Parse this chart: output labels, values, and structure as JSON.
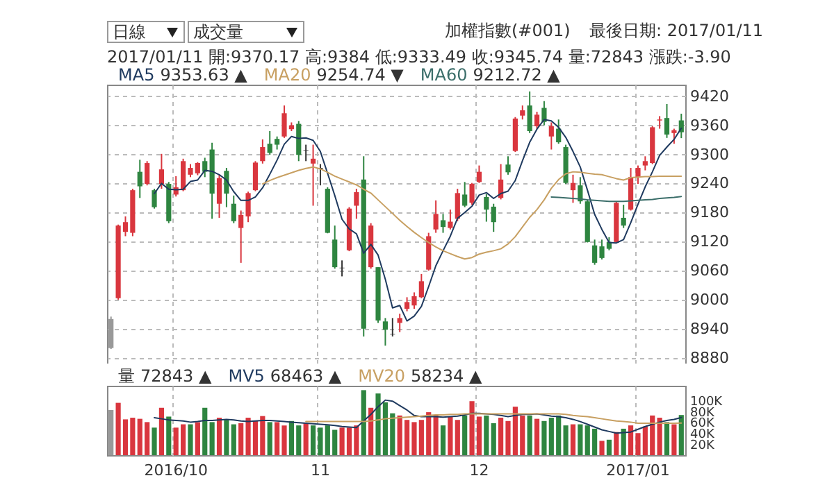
{
  "chart_data": [
    {
      "type": "candlestick",
      "title": "加權指數(#001)",
      "subtitle": "最後日期: 2017/01/11",
      "annotations": [
        "日線",
        "成交量",
        "2017/01/11 開:9370.17 高:9384 低:9333.49 收:9345.74 量:72843 漲跌:-3.90",
        "9353.63 ▲",
        "9254.74 ▼",
        "9212.72 ▲"
      ],
      "categories": [
        null,
        null,
        null,
        null,
        null,
        null,
        null,
        null,
        null,
        "2016/10",
        null,
        null,
        null,
        null,
        null,
        null,
        null,
        null,
        null,
        null,
        null,
        null,
        null,
        null,
        null,
        null,
        null,
        null,
        null,
        "11",
        null,
        null,
        null,
        null,
        null,
        null,
        null,
        null,
        null,
        null,
        null,
        null,
        null,
        null,
        null,
        null,
        null,
        null,
        null,
        null,
        null,
        "12",
        null,
        null,
        null,
        null,
        null,
        null,
        null,
        null,
        null,
        null,
        null,
        null,
        null,
        null,
        null,
        null,
        null,
        null,
        null,
        null,
        null,
        "2017/01",
        null,
        null,
        null,
        null,
        null,
        null
      ],
      "ohlc": [
        [
          8900,
          8965,
          8898,
          8960
        ],
        [
          9003,
          9155,
          9000,
          9153
        ],
        [
          9140,
          9172,
          9131,
          9160
        ],
        [
          9138,
          9229,
          9131,
          9226
        ],
        [
          9264,
          9289,
          9210,
          9234
        ],
        [
          9239,
          9286,
          9236,
          9282
        ],
        [
          9226,
          9229,
          9188,
          9191
        ],
        [
          9239,
          9301,
          9229,
          9269
        ],
        [
          9239,
          9243,
          9158,
          9162
        ],
        [
          9217,
          9255,
          9213,
          9232
        ],
        [
          9226,
          9291,
          9224,
          9286
        ],
        [
          9258,
          9280,
          9253,
          9272
        ],
        [
          9261,
          9284,
          9257,
          9282
        ],
        [
          9286,
          9293,
          9253,
          9264
        ],
        [
          9310,
          9324,
          9167,
          9219
        ],
        [
          9198,
          9258,
          9169,
          9251
        ],
        [
          9266,
          9272,
          9191,
          9219
        ],
        [
          9198,
          9215,
          9158,
          9162
        ],
        [
          9148,
          9184,
          9076,
          9175
        ],
        [
          9172,
          9223,
          9160,
          9220
        ],
        [
          9226,
          9286,
          9224,
          9283
        ],
        [
          9286,
          9331,
          9281,
          9315
        ],
        [
          9322,
          9348,
          9299,
          9303
        ],
        [
          9332,
          9337,
          9310,
          9320
        ],
        [
          9337,
          9401,
          9334,
          9385
        ],
        [
          9352,
          9366,
          9348,
          9360
        ],
        [
          9363,
          9369,
          9286,
          9299
        ],
        [
          9309,
          9320,
          9286,
          9308
        ],
        [
          9281,
          9320,
          9194,
          9291
        ],
        [
          9272,
          9280,
          9236,
          9270
        ],
        [
          9229,
          9232,
          9137,
          9138
        ],
        [
          9124,
          9153,
          9064,
          9067
        ],
        [
          9066,
          9081,
          9048,
          9065
        ],
        [
          9102,
          9191,
          9100,
          9188
        ],
        [
          9194,
          9229,
          9167,
          9222
        ],
        [
          9248,
          9296,
          8924,
          8940
        ],
        [
          9067,
          9158,
          9064,
          9153
        ],
        [
          9067,
          9067,
          8952,
          8957
        ],
        [
          8955,
          8962,
          8905,
          8938
        ],
        [
          8929,
          8962,
          8924,
          8928
        ],
        [
          8952,
          8971,
          8933,
          8962
        ],
        [
          8981,
          9005,
          8976,
          8995
        ],
        [
          8988,
          9015,
          8981,
          9007
        ],
        [
          9005,
          9053,
          9003,
          9038
        ],
        [
          9062,
          9138,
          9060,
          9131
        ],
        [
          9145,
          9205,
          9138,
          9177
        ],
        [
          9164,
          9177,
          9138,
          9150
        ],
        [
          9148,
          9186,
          9145,
          9161
        ],
        [
          9167,
          9229,
          9162,
          9220
        ],
        [
          9217,
          9243,
          9191,
          9194
        ],
        [
          9200,
          9241,
          9196,
          9239
        ],
        [
          9243,
          9277,
          9241,
          9264
        ],
        [
          9212,
          9218,
          9161,
          9186
        ],
        [
          9192,
          9198,
          9140,
          9160
        ],
        [
          9210,
          9280,
          9207,
          9248
        ],
        [
          9279,
          9296,
          9258,
          9263
        ],
        [
          9307,
          9377,
          9305,
          9374
        ],
        [
          9380,
          9401,
          9372,
          9391
        ],
        [
          9401,
          9430,
          9344,
          9348
        ],
        [
          9358,
          9388,
          9353,
          9382
        ],
        [
          9396,
          9410,
          9360,
          9367
        ],
        [
          9337,
          9366,
          9310,
          9358
        ],
        [
          9353,
          9372,
          9322,
          9325
        ],
        [
          9315,
          9320,
          9239,
          9241
        ],
        [
          9226,
          9258,
          9200,
          9241
        ],
        [
          9236,
          9253,
          9198,
          9203
        ],
        [
          9203,
          9205,
          9118,
          9119
        ],
        [
          9112,
          9124,
          9072,
          9076
        ],
        [
          9110,
          9124,
          9083,
          9086
        ],
        [
          9119,
          9129,
          9102,
          9105
        ],
        [
          9119,
          9202,
          9118,
          9200
        ],
        [
          9169,
          9196,
          9148,
          9153
        ],
        [
          9186,
          9272,
          9184,
          9253
        ],
        [
          9253,
          9277,
          9239,
          9272
        ],
        [
          9277,
          9296,
          9267,
          9286
        ],
        [
          9282,
          9358,
          9280,
          9356
        ],
        [
          9370,
          9379,
          9353,
          9372
        ],
        [
          9375,
          9404,
          9334,
          9341
        ],
        [
          9344,
          9353,
          9322,
          9350
        ],
        [
          9370.17,
          9384,
          9333.49,
          9345.74
        ]
      ],
      "colors": [
        "#999999",
        "#d9363e",
        "#d9363e",
        "#d9363e",
        "#2e8540",
        "#d9363e",
        "#2e8540",
        "#d9363e",
        "#2e8540",
        "#d9363e",
        "#d9363e",
        "#d9363e",
        "#d9363e",
        "#2e8540",
        "#2e8540",
        "#d9363e",
        "#2e8540",
        "#2e8540",
        "#d9363e",
        "#d9363e",
        "#d9363e",
        "#d9363e",
        "#2e8540",
        "#2e8540",
        "#d9363e",
        "#d9363e",
        "#2e8540",
        "#333333",
        "#d9363e",
        "#333333",
        "#2e8540",
        "#2e8540",
        "#333333",
        "#d9363e",
        "#d9363e",
        "#2e8540",
        "#d9363e",
        "#2e8540",
        "#2e8540",
        "#333333",
        "#d9363e",
        "#d9363e",
        "#d9363e",
        "#d9363e",
        "#d9363e",
        "#d9363e",
        "#2e8540",
        "#d9363e",
        "#d9363e",
        "#2e8540",
        "#d9363e",
        "#d9363e",
        "#2e8540",
        "#2e8540",
        "#d9363e",
        "#2e8540",
        "#d9363e",
        "#d9363e",
        "#2e8540",
        "#d9363e",
        "#2e8540",
        "#d9363e",
        "#2e8540",
        "#2e8540",
        "#d9363e",
        "#2e8540",
        "#2e8540",
        "#2e8540",
        "#2e8540",
        "#2e8540",
        "#d9363e",
        "#2e8540",
        "#d9363e",
        "#d9363e",
        "#d9363e",
        "#d9363e",
        "#d9363e",
        "#2e8540",
        "#d9363e",
        "#2e8540"
      ],
      "series": [
        {
          "name": "MA5",
          "type": "line",
          "color": "#1f3a5f",
          "values": [
            null,
            null,
            null,
            null,
            null,
            null,
            9219,
            9240,
            9228,
            9227,
            9228,
            9244,
            9247,
            9267,
            9265,
            9258,
            9247,
            9223,
            9205,
            9205,
            9212,
            9231,
            9259,
            9288,
            9321,
            9337,
            9333,
            9334,
            9329,
            9306,
            9261,
            9215,
            9166,
            9146,
            9136,
            9096,
            9114,
            9092,
            9042,
            8983,
            8988,
            8956,
            8966,
            8986,
            9027,
            9070,
            9101,
            9131,
            9168,
            9180,
            9193,
            9216,
            9221,
            9209,
            9219,
            9224,
            9246,
            9287,
            9325,
            9352,
            9372,
            9369,
            9356,
            9335,
            9306,
            9274,
            9226,
            9176,
            9145,
            9118,
            9117,
            9124,
            9159,
            9197,
            9233,
            9264,
            9298,
            9315,
            9331,
            9354
          ]
        },
        {
          "name": "MA20",
          "type": "line",
          "color": "#c8a062",
          "values": [
            null,
            null,
            null,
            null,
            null,
            null,
            null,
            null,
            null,
            null,
            null,
            null,
            null,
            null,
            null,
            null,
            null,
            null,
            null,
            null,
            null,
            9239,
            9246,
            9252,
            9257,
            9262,
            9267,
            9271,
            9274,
            9270,
            9263,
            9255,
            9249,
            9243,
            9237,
            9228,
            9220,
            9206,
            9192,
            9178,
            9164,
            9151,
            9139,
            9128,
            9118,
            9109,
            9101,
            9095,
            9089,
            9084,
            9087,
            9094,
            9098,
            9101,
            9105,
            9115,
            9130,
            9150,
            9170,
            9186,
            9206,
            9230,
            9248,
            9260,
            9264,
            9263,
            9261,
            9259,
            9258,
            9254,
            9250,
            9247,
            9252,
            9253,
            9254,
            9254,
            9255,
            9255,
            9255,
            9255
          ]
        },
        {
          "name": "MA60",
          "type": "line",
          "color": "#3b6e6a",
          "values": [
            null,
            null,
            null,
            null,
            null,
            null,
            null,
            null,
            null,
            null,
            null,
            null,
            null,
            null,
            null,
            null,
            null,
            null,
            null,
            null,
            null,
            null,
            null,
            null,
            null,
            null,
            null,
            null,
            null,
            null,
            null,
            null,
            null,
            null,
            null,
            null,
            null,
            null,
            null,
            null,
            null,
            null,
            null,
            null,
            null,
            null,
            null,
            null,
            null,
            null,
            null,
            null,
            null,
            null,
            null,
            null,
            null,
            null,
            null,
            null,
            null,
            9212,
            9211,
            9210,
            9209,
            9208,
            9206,
            9205,
            9204,
            9203,
            9203,
            9203,
            9204,
            9205,
            9206,
            9207,
            9209,
            9210,
            9211,
            9213
          ]
        }
      ],
      "ylim": [
        8868,
        9444
      ],
      "yticks": [
        8880,
        8940,
        9000,
        9060,
        9120,
        9180,
        9240,
        9300,
        9360,
        9420
      ],
      "grid": true,
      "tick_labels": "y",
      "legend": "top left"
    },
    {
      "type": "bar",
      "annotations": [
        "72843 ▲",
        "68463 ▲",
        "58234 ▲"
      ],
      "categories": [
        null,
        null,
        null,
        null,
        null,
        null,
        null,
        null,
        null,
        "2016/10",
        null,
        null,
        null,
        null,
        null,
        null,
        null,
        null,
        null,
        null,
        null,
        null,
        null,
        null,
        null,
        null,
        null,
        null,
        null,
        "11",
        null,
        null,
        null,
        null,
        null,
        null,
        null,
        null,
        null,
        null,
        null,
        null,
        null,
        null,
        null,
        null,
        null,
        null,
        null,
        null,
        null,
        "12",
        null,
        null,
        null,
        null,
        null,
        null,
        null,
        null,
        null,
        null,
        null,
        null,
        null,
        null,
        null,
        null,
        null,
        null,
        null,
        null,
        null,
        "2017/01",
        null,
        null,
        null,
        null,
        null,
        null
      ],
      "series": [
        {
          "name": "量",
          "values": [
            82000,
            95000,
            65000,
            68000,
            66000,
            60000,
            50000,
            86000,
            70000,
            50000,
            56000,
            56000,
            60000,
            86000,
            60000,
            68000,
            64000,
            56000,
            58000,
            68000,
            62000,
            71000,
            60000,
            60000,
            54000,
            62000,
            54000,
            58000,
            54000,
            50000,
            54000,
            46000,
            50000,
            50000,
            54000,
            118000,
            86000,
            112000,
            96000,
            76000,
            72000,
            64000,
            60000,
            64000,
            78000,
            72000,
            54000,
            70000,
            64000,
            72000,
            98000,
            70000,
            72000,
            58000,
            68000,
            62000,
            88000,
            72000,
            72000,
            66000,
            62000,
            68000,
            72000,
            54000,
            56000,
            56000,
            54000,
            48000,
            26000,
            28000,
            42000,
            48000,
            54000,
            40000,
            52000,
            72000,
            68000,
            60000,
            56000,
            72843
          ],
          "colors": [
            "#999999",
            "#d9363e",
            "#d9363e",
            "#d9363e",
            "#d9363e",
            "#d9363e",
            "#2e8540",
            "#d9363e",
            "#2e8540",
            "#d9363e",
            "#d9363e",
            "#2e8540",
            "#d9363e",
            "#2e8540",
            "#2e8540",
            "#d9363e",
            "#2e8540",
            "#2e8540",
            "#d9363e",
            "#d9363e",
            "#d9363e",
            "#d9363e",
            "#2e8540",
            "#d9363e",
            "#d9363e",
            "#2e8540",
            "#2e8540",
            "#d9363e",
            "#2e8540",
            "#2e8540",
            "#2e8540",
            "#2e8540",
            "#d9363e",
            "#d9363e",
            "#d9363e",
            "#2e8540",
            "#d9363e",
            "#2e8540",
            "#2e8540",
            "#2e8540",
            "#d9363e",
            "#d9363e",
            "#d9363e",
            "#d9363e",
            "#d9363e",
            "#d9363e",
            "#2e8540",
            "#d9363e",
            "#d9363e",
            "#2e8540",
            "#d9363e",
            "#d9363e",
            "#2e8540",
            "#2e8540",
            "#d9363e",
            "#d9363e",
            "#d9363e",
            "#d9363e",
            "#2e8540",
            "#d9363e",
            "#2e8540",
            "#2e8540",
            "#2e8540",
            "#2e8540",
            "#d9363e",
            "#2e8540",
            "#2e8540",
            "#2e8540",
            "#d9363e",
            "#2e8540",
            "#d9363e",
            "#2e8540",
            "#d9363e",
            "#d9363e",
            "#d9363e",
            "#d9363e",
            "#d9363e",
            "#2e8540",
            "#d9363e",
            "#2e8540"
          ]
        },
        {
          "name": "MV5",
          "type": "line",
          "color": "#1f3a5f",
          "values": [
            null,
            null,
            null,
            null,
            null,
            null,
            68000,
            66000,
            64000,
            63000,
            62000,
            60000,
            61000,
            63000,
            63000,
            64000,
            65000,
            64000,
            62000,
            61000,
            62000,
            63000,
            63000,
            62000,
            61000,
            60000,
            59000,
            58000,
            57000,
            56000,
            55000,
            54000,
            52000,
            51000,
            50000,
            62000,
            74000,
            88000,
            100000,
            98000,
            90000,
            82000,
            72000,
            70000,
            70000,
            70000,
            69000,
            70000,
            71000,
            73000,
            76000,
            76000,
            75000,
            74000,
            72000,
            70000,
            72000,
            74000,
            74000,
            75000,
            73000,
            71000,
            70000,
            68000,
            65000,
            61000,
            56000,
            51000,
            46000,
            43000,
            40000,
            41000,
            42000,
            47000,
            52000,
            56000,
            60000,
            63000,
            65000,
            68463
          ]
        },
        {
          "name": "MV20",
          "type": "line",
          "color": "#c8a062",
          "values": [
            null,
            null,
            null,
            null,
            null,
            null,
            null,
            null,
            null,
            null,
            null,
            null,
            null,
            null,
            null,
            null,
            null,
            null,
            null,
            null,
            null,
            null,
            null,
            null,
            null,
            null,
            null,
            61000,
            61000,
            61000,
            61000,
            61000,
            61000,
            61000,
            61000,
            61000,
            62000,
            64000,
            66000,
            67000,
            68000,
            69000,
            70000,
            71000,
            72000,
            73000,
            73000,
            74000,
            74000,
            75000,
            75000,
            75000,
            75000,
            75000,
            75000,
            75000,
            75000,
            75000,
            75000,
            75000,
            75000,
            75000,
            75000,
            74000,
            72000,
            71000,
            70000,
            68000,
            66000,
            64000,
            62000,
            61000,
            60000,
            58000,
            58000,
            58000,
            58000,
            58000,
            58000,
            58234
          ]
        }
      ],
      "ylim": [
        0,
        126000
      ],
      "yticks": [
        {
          "value": 20000,
          "label": "20K"
        },
        {
          "value": 40000,
          "label": "40K"
        },
        {
          "value": 60000,
          "label": "60K"
        },
        {
          "value": 80000,
          "label": "80K"
        },
        {
          "value": 100000,
          "label": "100K"
        }
      ],
      "grid": "x",
      "legend": "top left"
    }
  ]
}
